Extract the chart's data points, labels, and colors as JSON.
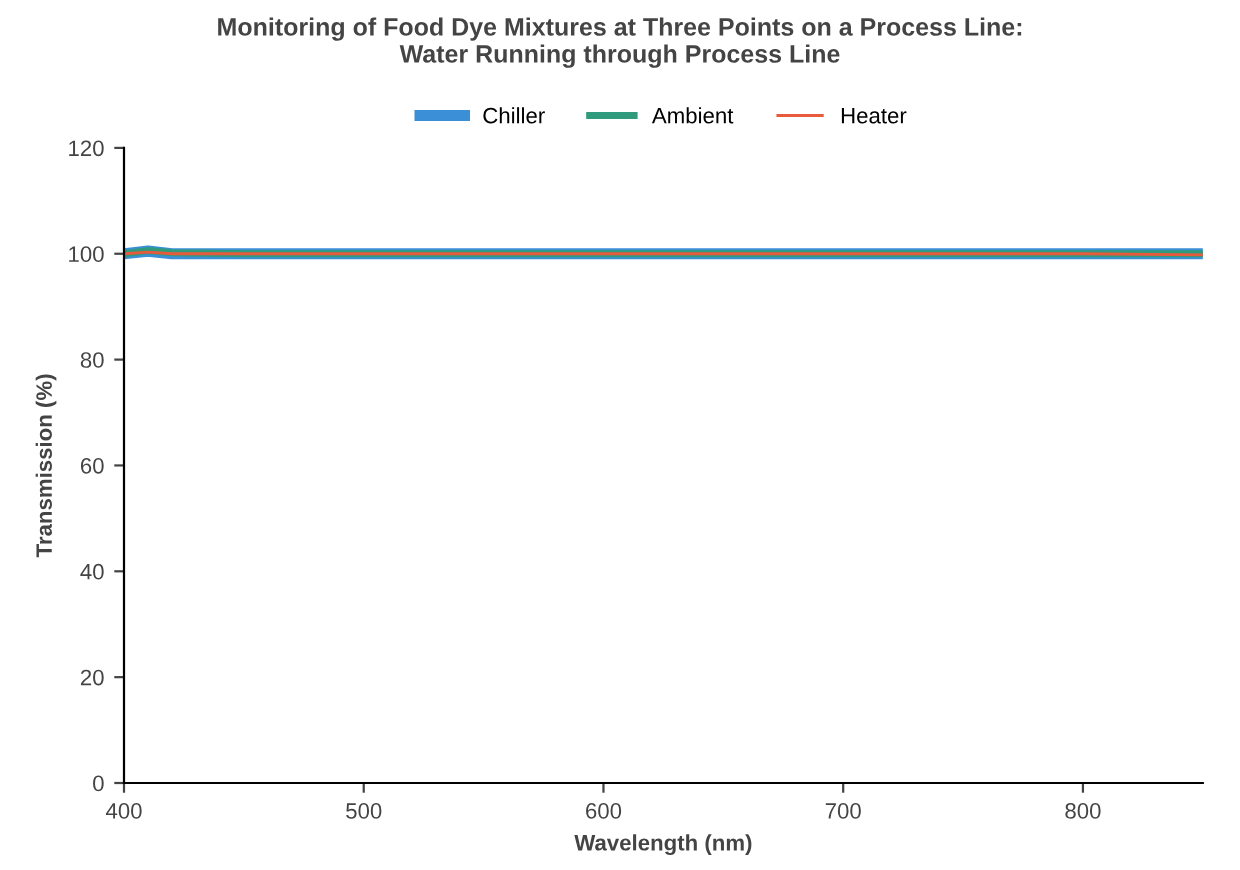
{
  "chart_data": {
    "type": "line",
    "title": "Monitoring of Food Dye Mixtures at Three Points on a Process Line:\nWater Running through Process Line",
    "xlabel": "Wavelength (nm)",
    "ylabel": "Transmission (%)",
    "x": [
      400,
      410,
      420,
      450,
      500,
      550,
      600,
      650,
      700,
      750,
      800,
      850
    ],
    "series": [
      {
        "name": "Chiller",
        "color": "#3a8fd6",
        "values": [
          100,
          100.5,
          100,
          100,
          100,
          100,
          100,
          100,
          100,
          100,
          100,
          100
        ]
      },
      {
        "name": "Ambient",
        "color": "#2f9a7c",
        "values": [
          100,
          100.6,
          100.2,
          100,
          100,
          100,
          100,
          100,
          100,
          100,
          100,
          100
        ]
      },
      {
        "name": "Heater",
        "color": "#e85a3c",
        "values": [
          100,
          100.3,
          100,
          100,
          100,
          100,
          100,
          100,
          100,
          100,
          100,
          99.8
        ]
      }
    ],
    "xlim": [
      400,
      850
    ],
    "xticks": [
      400,
      500,
      600,
      700,
      800
    ],
    "ylim": [
      0,
      120
    ],
    "yticks": [
      0,
      20,
      40,
      60,
      80,
      100,
      120
    ],
    "grid": false,
    "legend": "top",
    "marker": "none",
    "line_style": "solid"
  }
}
